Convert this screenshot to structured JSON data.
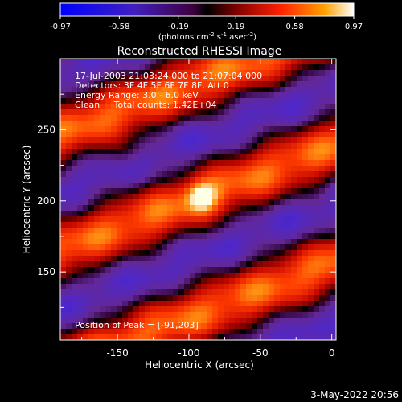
{
  "colorbar": {
    "tick_labels": [
      "-0.97",
      "-0.58",
      "-0.19",
      "0.19",
      "0.58",
      "0.97"
    ],
    "range": [
      -0.97,
      0.97
    ],
    "unit_prefix": "(photons cm",
    "unit_exp1": "-2",
    "unit_mid": " s",
    "unit_exp2": "-1",
    "unit_mid2": " asec",
    "unit_exp3": "-2",
    "unit_suffix": ")"
  },
  "chart_data": {
    "type": "heatmap",
    "title": "Reconstructed RHESSI Image",
    "xlabel": "Heliocentric X (arcsec)",
    "ylabel": "Heliocentric Y (arcsec)",
    "xlim": [
      -190,
      3
    ],
    "ylim": [
      102,
      300
    ],
    "xticks": [
      -150,
      -100,
      -50,
      0
    ],
    "yticks": [
      150,
      200,
      250
    ],
    "x_tick_labels": [
      "-150",
      "-100",
      "-50",
      "0"
    ],
    "y_tick_labels": [
      "150",
      "200",
      "250"
    ],
    "peak": [
      -91,
      203
    ],
    "info_lines": [
      "17-Jul-2003 21:03:24.000 to 21:07:04.000",
      "Detectors: 3F 4F 5F 6F 7F 8F, Att 0",
      "Energy Range: 3.0 - 6.0 keV",
      "Clean     Total counts: 1.42E+04"
    ],
    "peak_label": "Position of Peak = [-91,203]"
  },
  "footer": {
    "date": "3-May-2022 20:56"
  }
}
